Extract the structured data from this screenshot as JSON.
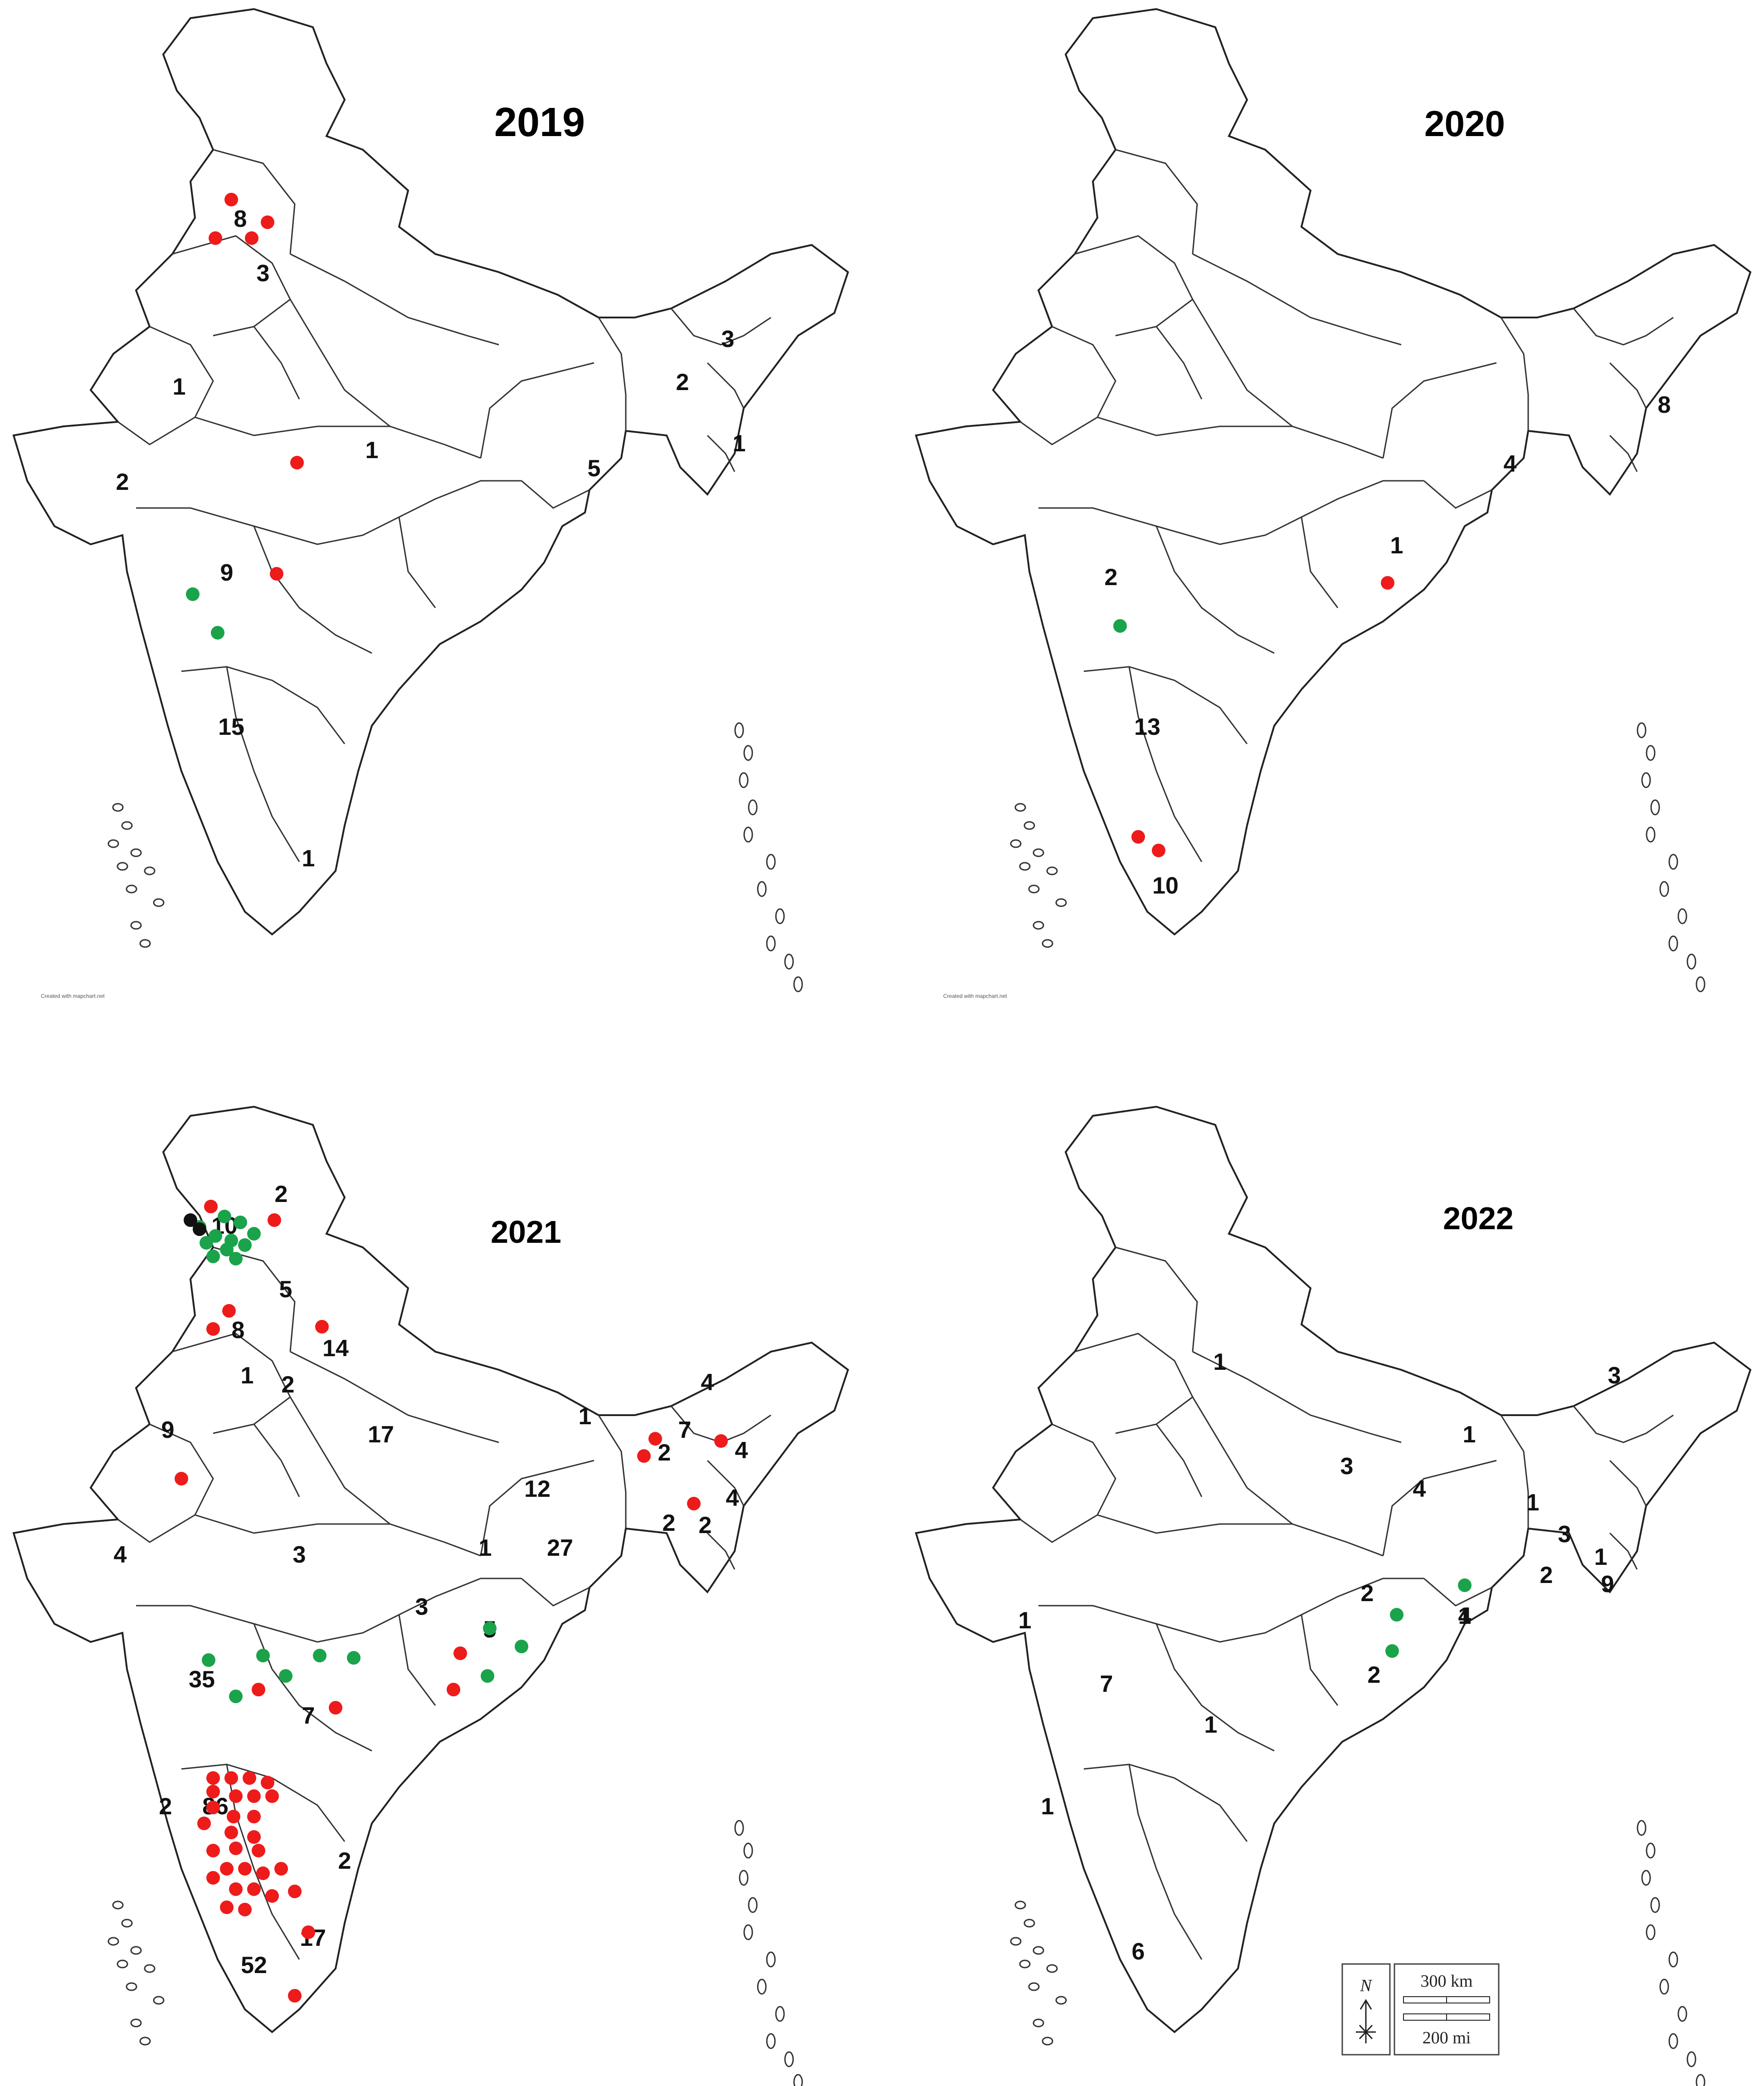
{
  "credit": "Created with mapchart.net",
  "colors": {
    "red": "#ee1b1b",
    "green": "#1aa34a",
    "black": "#111111"
  },
  "panels": [
    {
      "year": "2019",
      "labels": [
        "8",
        "3",
        "1",
        "1",
        "2",
        "9",
        "15",
        "1",
        "5",
        "3",
        "2",
        "1"
      ],
      "dots": {
        "red": 6,
        "green": 2,
        "black": 0
      }
    },
    {
      "year": "2020",
      "labels": [
        "8",
        "4",
        "1",
        "2",
        "13",
        "10"
      ],
      "dots": {
        "red": 3,
        "green": 1,
        "black": 0
      }
    },
    {
      "year": "2021",
      "labels": [
        "10",
        "2",
        "5",
        "8",
        "14",
        "1",
        "2",
        "9",
        "17",
        "1",
        "7",
        "2",
        "4",
        "4",
        "4",
        "12",
        "2",
        "2",
        "4",
        "3",
        "1",
        "27",
        "3",
        "5",
        "35",
        "7",
        "2",
        "86",
        "2",
        "17",
        "52"
      ],
      "dots": {
        "red": 44,
        "green": 20,
        "black": 2
      }
    },
    {
      "year": "2022",
      "labels": [
        "1",
        "1",
        "3",
        "3",
        "4",
        "4",
        "1",
        "3",
        "1",
        "9",
        "2",
        "2",
        "1",
        "2",
        "1",
        "7",
        "1",
        "1",
        "6"
      ],
      "dots": {
        "red": 0,
        "green": 3,
        "black": 0
      }
    }
  ],
  "legend": {
    "north": "N",
    "scale_km": "300 km",
    "scale_mi": "200 mi"
  }
}
